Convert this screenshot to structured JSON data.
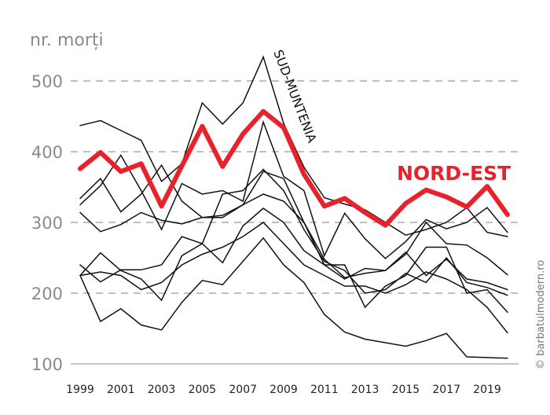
{
  "chart_data": {
    "type": "line",
    "title": "",
    "ylabel": "nr. morți",
    "xlabel": "",
    "ylim": [
      100,
      540
    ],
    "y_ticks": [
      100,
      200,
      300,
      400,
      500
    ],
    "x_tick_labels": [
      "1999",
      "2001",
      "2003",
      "2005",
      "2007",
      "2009",
      "2011",
      "2013",
      "2015",
      "2017",
      "2019"
    ],
    "grid": "horizontal dashed",
    "x": [
      1999,
      2000,
      2001,
      2002,
      2003,
      2004,
      2005,
      2006,
      2007,
      2008,
      2009,
      2010,
      2011,
      2012,
      2013,
      2014,
      2015,
      2016,
      2017,
      2018,
      2019,
      2020
    ],
    "series": [
      {
        "name": "SUD-MUNTENIA",
        "color": "#111111",
        "values": [
          437,
          444,
          430,
          416,
          358,
          383,
          469,
          439,
          469,
          534,
          440,
          378,
          335,
          326,
          318,
          300,
          282,
          290,
          300,
          321,
          286,
          280
        ]
      },
      {
        "name": "",
        "color": "#111111",
        "values": [
          334,
          362,
          315,
          340,
          381,
          330,
          307,
          310,
          325,
          372,
          362,
          300,
          240,
          220,
          235,
          232,
          255,
          300,
          270,
          268,
          250,
          226
        ]
      },
      {
        "name": "",
        "color": "#111111",
        "values": [
          325,
          352,
          395,
          345,
          290,
          355,
          340,
          345,
          330,
          442,
          365,
          345,
          253,
          313,
          277,
          249,
          273,
          304,
          291,
          300,
          321,
          286
        ]
      },
      {
        "name": "",
        "color": "#111111",
        "values": [
          314,
          287,
          297,
          314,
          303,
          298,
          307,
          307,
          325,
          340,
          330,
          300,
          248,
          222,
          228,
          232,
          258,
          225,
          248,
          220,
          215,
          205
        ]
      },
      {
        "name": "",
        "color": "#111111",
        "values": [
          240,
          216,
          233,
          233,
          240,
          280,
          270,
          340,
          345,
          375,
          345,
          290,
          245,
          232,
          200,
          205,
          228,
          215,
          250,
          215,
          208,
          197
        ]
      },
      {
        "name": "",
        "color": "#111111",
        "values": [
          225,
          257,
          232,
          220,
          190,
          253,
          270,
          243,
          295,
          320,
          300,
          260,
          240,
          240,
          180,
          210,
          225,
          265,
          265,
          200,
          205,
          173
        ]
      },
      {
        "name": "",
        "color": "#111111",
        "values": [
          225,
          230,
          225,
          205,
          215,
          240,
          255,
          265,
          280,
          300,
          270,
          240,
          225,
          210,
          210,
          200,
          212,
          230,
          220,
          205,
          180,
          144
        ]
      },
      {
        "name": "",
        "color": "#111111",
        "values": [
          225,
          160,
          178,
          155,
          148,
          187,
          218,
          212,
          245,
          278,
          240,
          215,
          170,
          145,
          135,
          130,
          125,
          133,
          143,
          110,
          109,
          108
        ]
      },
      {
        "name": "NORD-EST",
        "color": "#e8212b",
        "values": [
          376,
          399,
          372,
          383,
          323,
          380,
          436,
          379,
          425,
          457,
          434,
          368,
          323,
          334,
          314,
          296,
          327,
          346,
          336,
          322,
          351,
          311
        ]
      }
    ]
  },
  "labels": {
    "sud_muntenia": "SUD-MUNTENIA",
    "nord_est": "NORD-EST",
    "copyright": "© barbatulmodern.ro"
  }
}
